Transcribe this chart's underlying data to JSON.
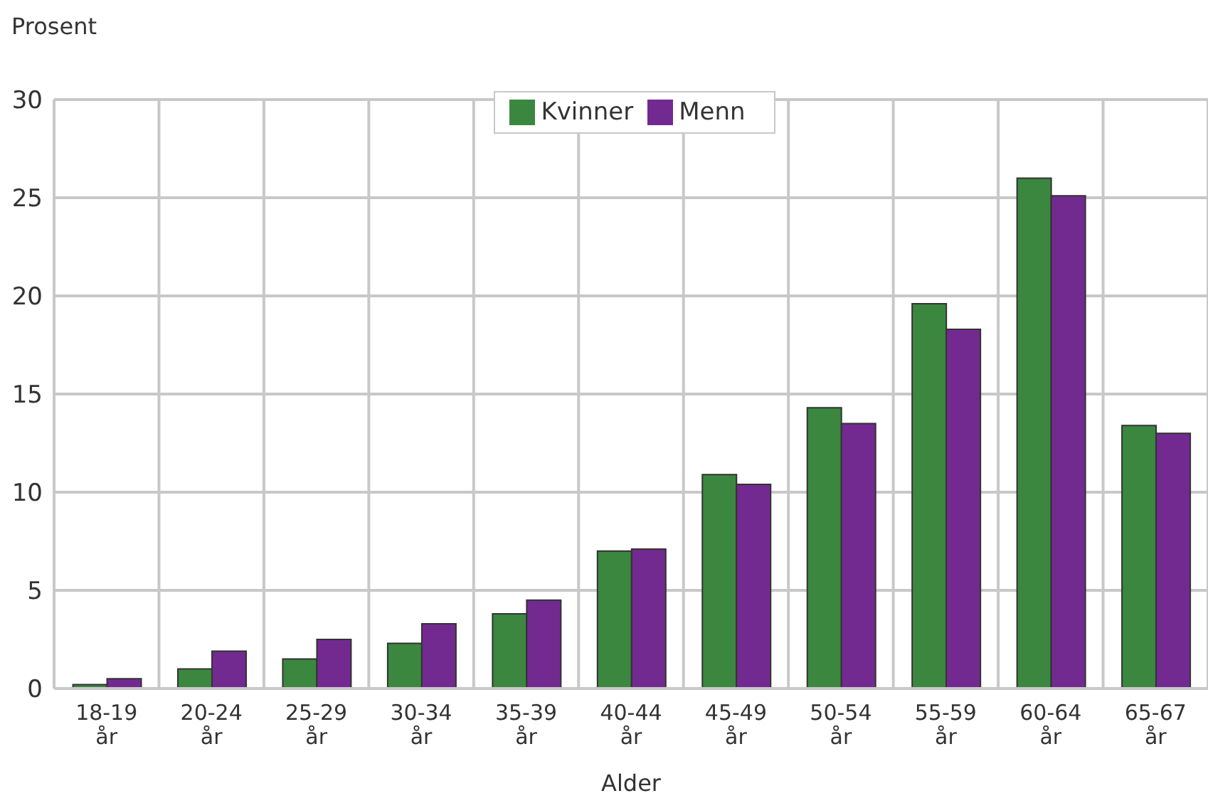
{
  "chart_data": {
    "type": "bar",
    "xlabel": "Alder",
    "ylabel": "Prosent",
    "categories": [
      "18-19 år",
      "20-24 år",
      "25-29 år",
      "30-34 år",
      "35-39 år",
      "40-44 år",
      "45-49 år",
      "50-54 år",
      "55-59 år",
      "60-64 år",
      "65-67 år"
    ],
    "series": [
      {
        "name": "Kvinner",
        "color": "#3b873f",
        "values": [
          0.2,
          1.0,
          1.5,
          2.3,
          3.8,
          7.0,
          10.9,
          14.3,
          19.6,
          26.0,
          13.4
        ]
      },
      {
        "name": "Menn",
        "color": "#722a90",
        "values": [
          0.5,
          1.9,
          2.5,
          3.3,
          4.5,
          7.1,
          10.4,
          13.5,
          18.3,
          25.1,
          13.0
        ]
      }
    ],
    "ylim": [
      0,
      30
    ],
    "yticks": [
      0,
      5,
      10,
      15,
      20,
      25,
      30
    ],
    "grid": true,
    "legend": "top"
  }
}
